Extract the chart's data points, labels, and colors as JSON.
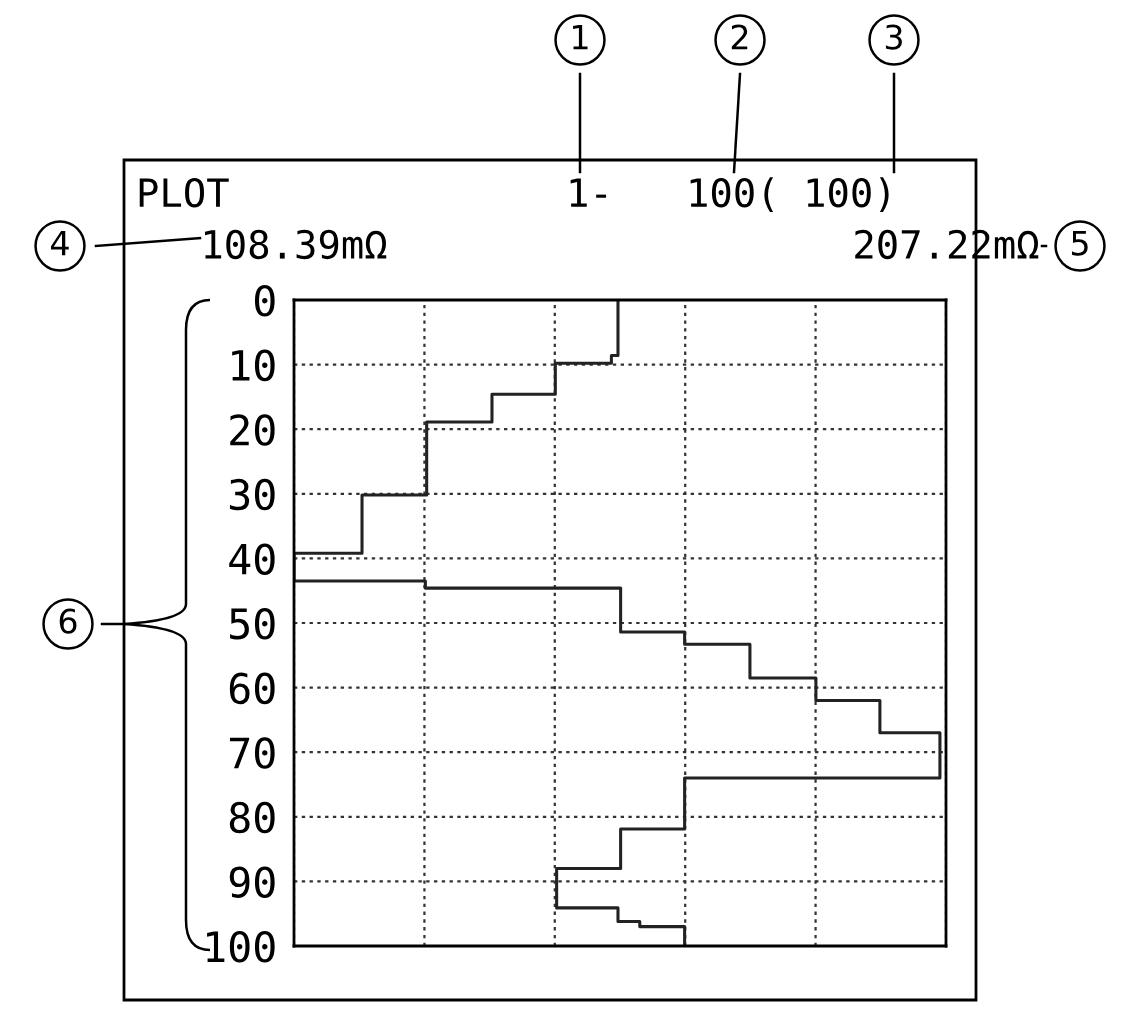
{
  "chart_data": {
    "type": "line",
    "annotations": [
      "PLOT",
      "1-",
      "100( 100)",
      "1",
      "2",
      "3",
      "4",
      "5",
      "6"
    ],
    "series": [
      {
        "color": "#222222",
        "x": [
          157.5,
          157.5,
          156.5,
          156.5,
          148.0,
          148.0,
          138.4,
          138.4,
          128.5,
          128.5,
          118.7,
          118.7,
          108.4,
          108.4,
          128.3,
          128.3,
          157.9,
          157.9,
          167.6,
          167.6,
          177.5,
          177.5,
          187.5,
          187.5,
          197.2,
          197.2,
          206.3,
          206.3,
          167.6,
          167.6,
          157.9,
          157.9,
          148.2,
          148.2,
          157.5,
          157.5,
          160.8,
          160.8,
          167.6,
          167.6
        ],
        "values": [
          0,
          8.6,
          8.6,
          9.8,
          9.8,
          14.6,
          14.6,
          18.9,
          18.9,
          30.2,
          30.2,
          39.2,
          39.2,
          43.5,
          43.5,
          44.6,
          44.6,
          51.4,
          51.4,
          53.3,
          53.3,
          58.5,
          58.5,
          62,
          62,
          67,
          67,
          74,
          74,
          81.9,
          81.9,
          88,
          88,
          94.1,
          94.1,
          96.2,
          96.2,
          97,
          97,
          100
        ]
      }
    ],
    "xlim": [
      108.39,
      207.22
    ],
    "xticks": [
      {
        "value": 108.39,
        "label": "108.39mΩ"
      },
      {
        "value": 128.16,
        "label": null
      },
      {
        "value": 147.92,
        "label": null
      },
      {
        "value": 167.69,
        "label": null
      },
      {
        "value": 187.45,
        "label": null
      },
      {
        "value": 207.22,
        "label": "207.22mΩ"
      }
    ],
    "ylim": [
      100,
      0
    ],
    "yticks": [
      0,
      10,
      20,
      30,
      40,
      50,
      60,
      70,
      80,
      90,
      100
    ],
    "grid": true,
    "line_style": "solid"
  }
}
